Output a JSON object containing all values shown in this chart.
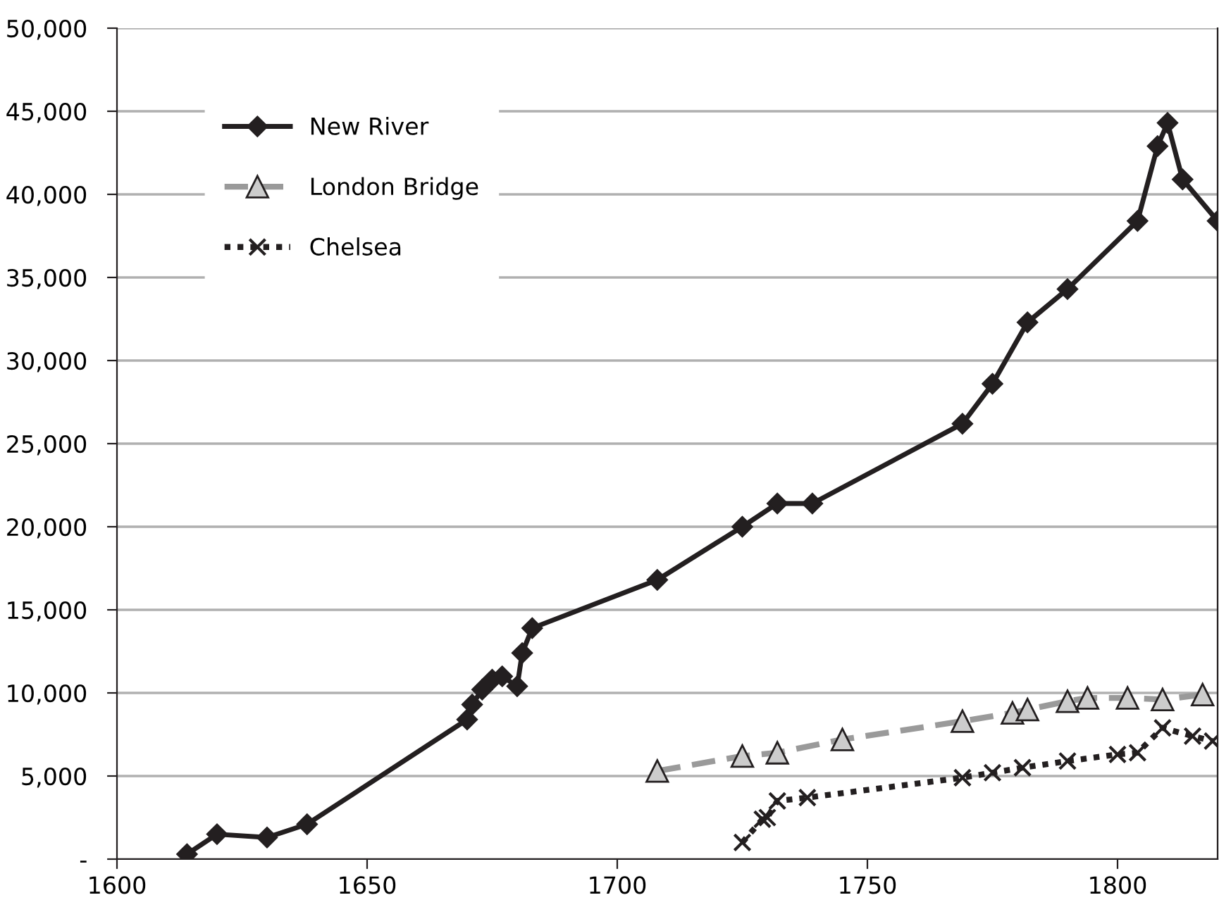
{
  "chart_data": {
    "type": "line",
    "xlim": [
      1600,
      1820
    ],
    "xticks": [
      1600,
      1650,
      1700,
      1750,
      1800
    ],
    "ylim": [
      0,
      50000
    ],
    "yticks": [
      {
        "value": 0,
        "label": "-"
      },
      {
        "value": 5000,
        "label": "5,000"
      },
      {
        "value": 10000,
        "label": "10,000"
      },
      {
        "value": 15000,
        "label": "15,000"
      },
      {
        "value": 20000,
        "label": "20,000"
      },
      {
        "value": 25000,
        "label": "25,000"
      },
      {
        "value": 30000,
        "label": "30,000"
      },
      {
        "value": 35000,
        "label": "35,000"
      },
      {
        "value": 40000,
        "label": "40,000"
      },
      {
        "value": 45000,
        "label": "45,000"
      },
      {
        "value": 50000,
        "label": "50,000"
      }
    ],
    "grid": "y",
    "legend": "top left",
    "series": [
      {
        "name": "New River",
        "color": "#231f20",
        "marker": "diamond",
        "line_style": "solid",
        "x": [
          1614,
          1620,
          1630,
          1638,
          1670,
          1671,
          1673,
          1675,
          1677,
          1680,
          1681,
          1683,
          1708,
          1725,
          1732,
          1739,
          1769,
          1775,
          1782,
          1790,
          1804,
          1808,
          1810,
          1813,
          1820
        ],
        "values": [
          300,
          1500,
          1300,
          2100,
          8400,
          9300,
          10200,
          10800,
          11000,
          10400,
          12400,
          13900,
          16800,
          20000,
          21400,
          21400,
          26200,
          28600,
          32300,
          34300,
          38400,
          42900,
          44300,
          40900,
          38400
        ]
      },
      {
        "name": "London Bridge",
        "color": "#9a9a9a",
        "marker": "triangle",
        "line_style": "dashed",
        "x": [
          1708,
          1725,
          1732,
          1745,
          1769,
          1779,
          1782,
          1790,
          1794,
          1802,
          1809,
          1817
        ],
        "values": [
          5300,
          6200,
          6400,
          7200,
          8300,
          8800,
          9000,
          9500,
          9700,
          9700,
          9600,
          9900
        ]
      },
      {
        "name": "Chelsea",
        "color": "#231f20",
        "marker": "cross",
        "line_style": "dotted",
        "x": [
          1725,
          1729,
          1730,
          1732,
          1738,
          1769,
          1775,
          1781,
          1790,
          1800,
          1804,
          1809,
          1815,
          1819
        ],
        "values": [
          1000,
          2400,
          2500,
          3500,
          3700,
          4900,
          5200,
          5500,
          5900,
          6300,
          6400,
          7900,
          7400,
          7100
        ]
      }
    ]
  }
}
